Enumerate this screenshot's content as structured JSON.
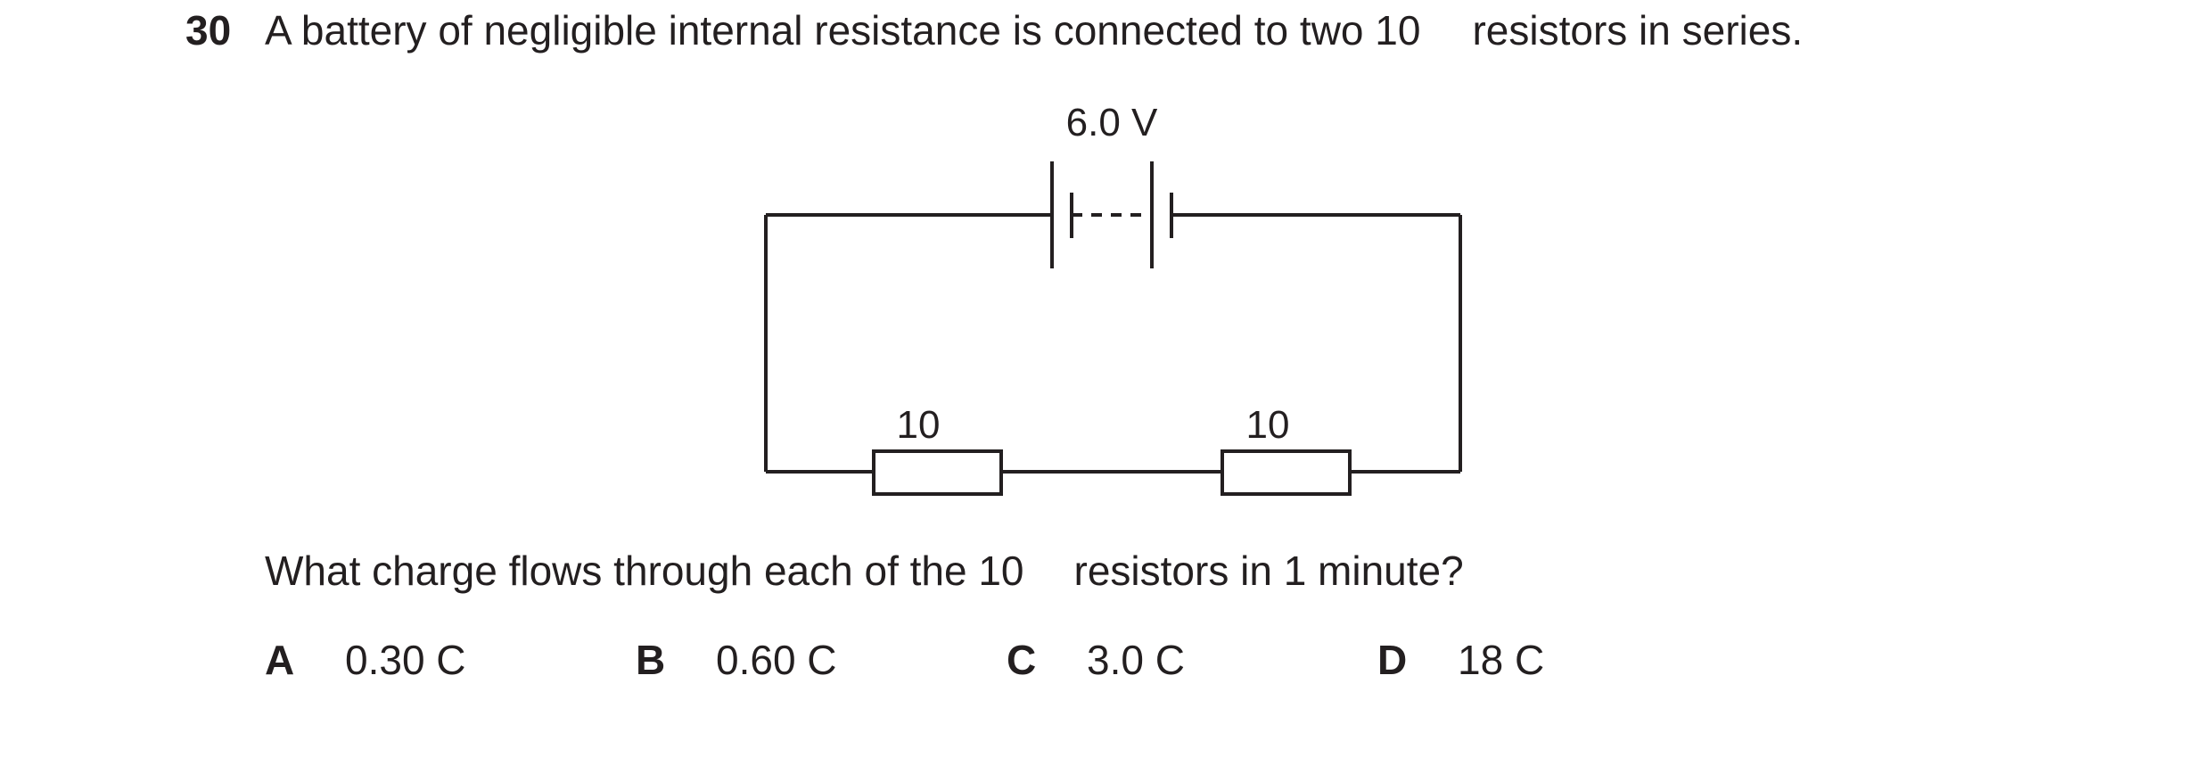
{
  "question": {
    "number": "30",
    "stem_before": "A battery of negligible internal resistance is connected to two 10",
    "stem_after": "resistors in series.",
    "prompt_before": "What charge flows through each of the 10",
    "prompt_after": "resistors in 1 minute?"
  },
  "diagram": {
    "battery_label": "6.0 V",
    "resistor_left_label": "10",
    "resistor_right_label": "10"
  },
  "options": [
    {
      "letter": "A",
      "value": "0.30 C"
    },
    {
      "letter": "B",
      "value": "0.60 C"
    },
    {
      "letter": "C",
      "value": "3.0 C"
    },
    {
      "letter": "D",
      "value": "18 C"
    }
  ]
}
